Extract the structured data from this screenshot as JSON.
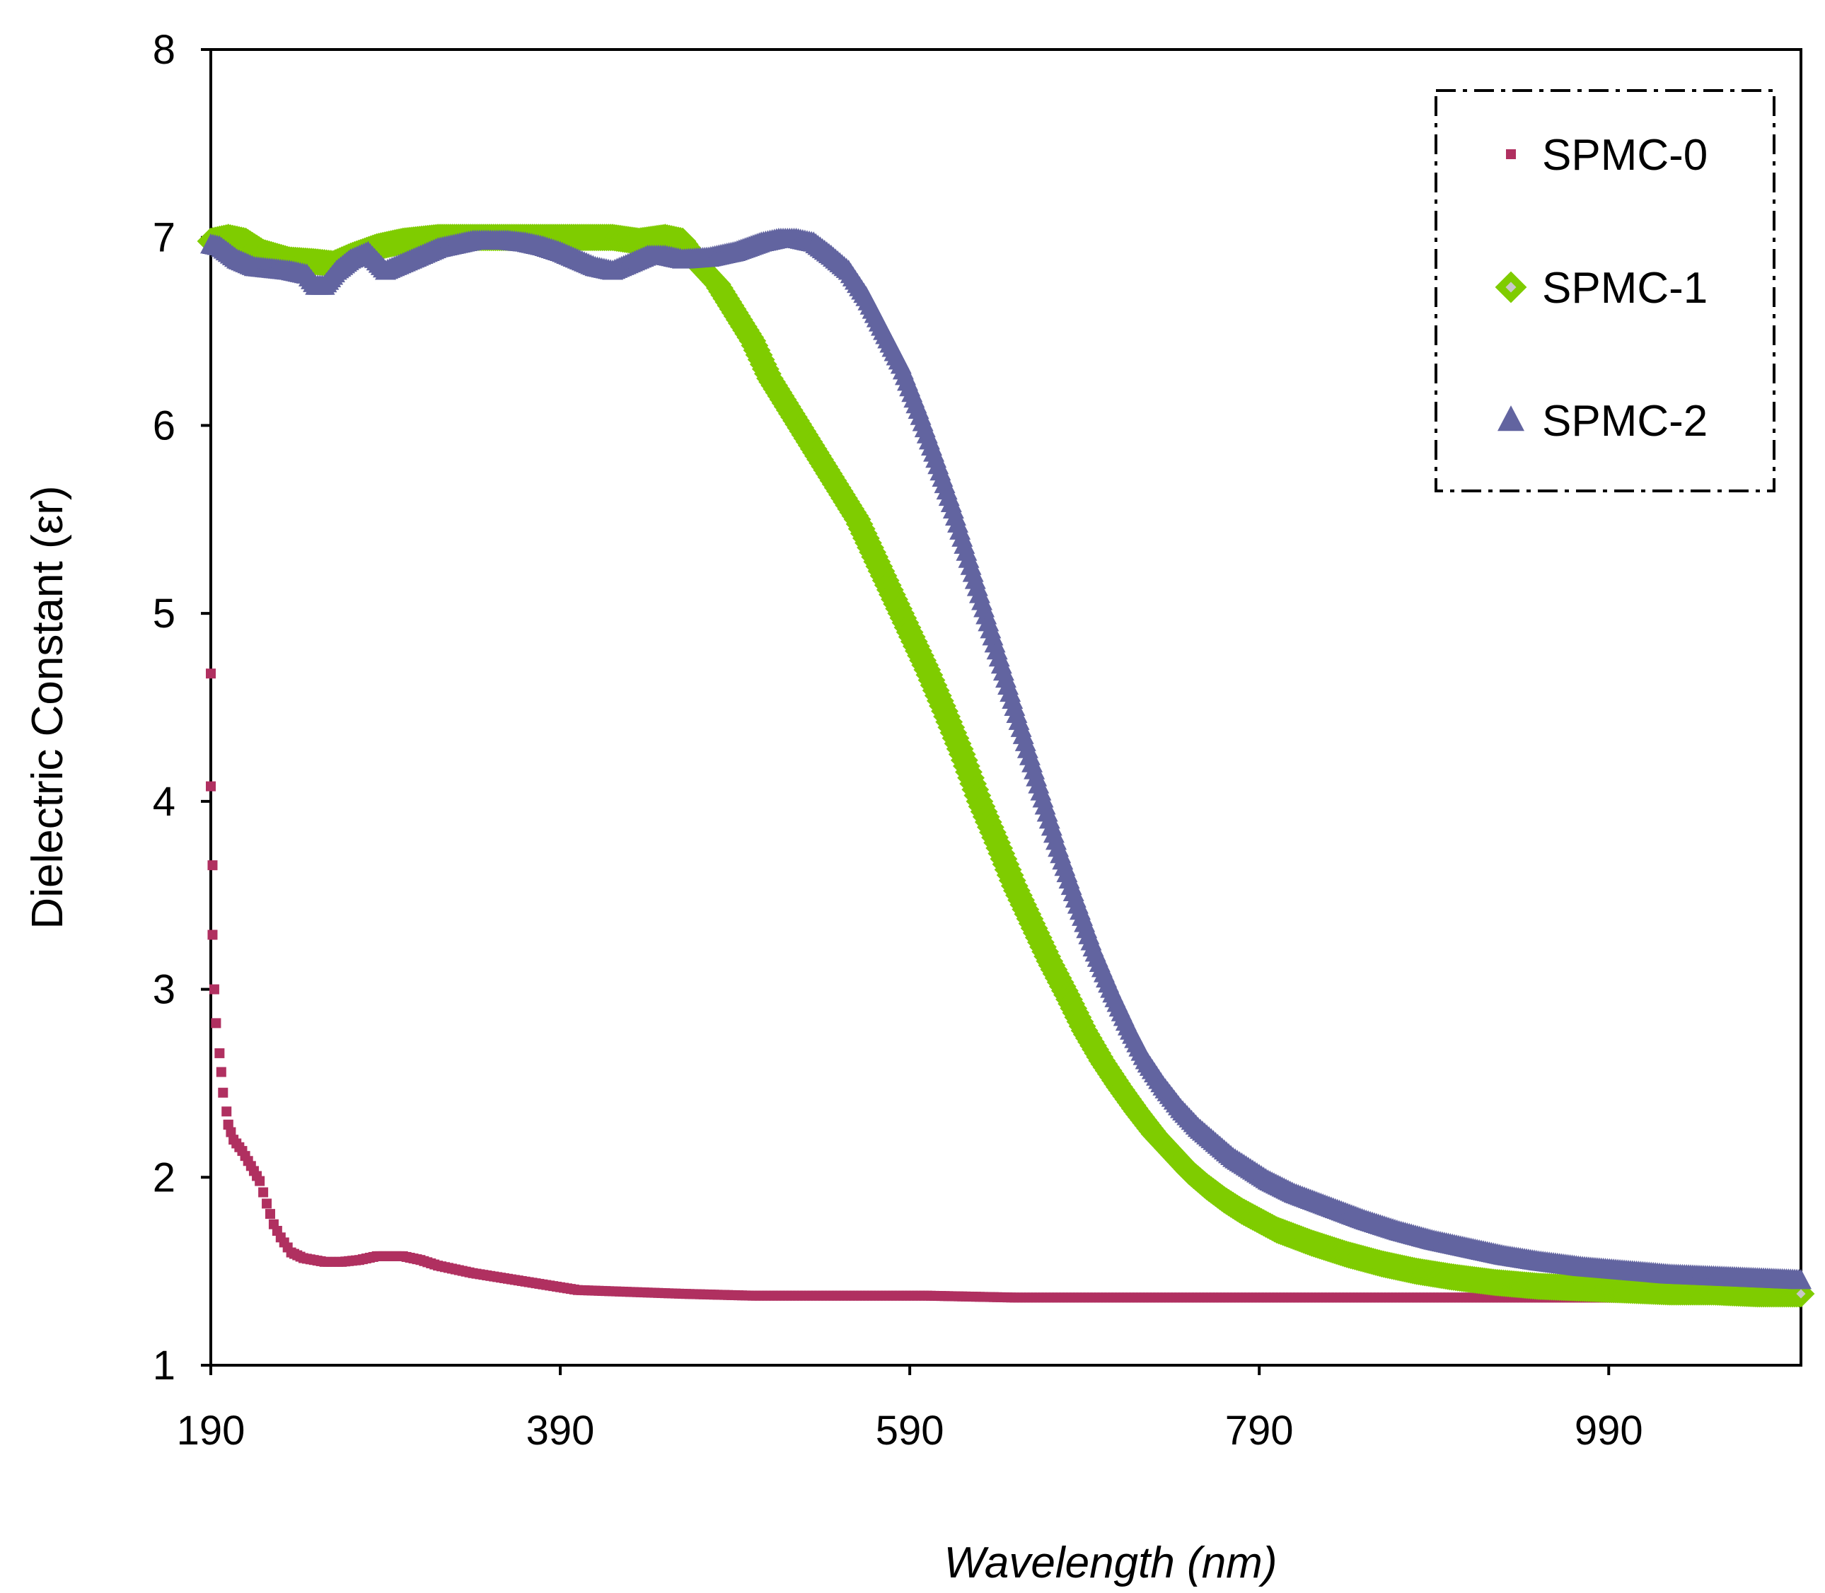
{
  "chart_data": {
    "type": "scatter",
    "title": "",
    "xlabel": "Wavelength (nm)",
    "ylabel": "Dielectric Constant (εr)",
    "xlim": [
      190,
      1100
    ],
    "ylim": [
      1,
      8
    ],
    "xticks": [
      190,
      390,
      590,
      790,
      990
    ],
    "yticks": [
      1,
      2,
      3,
      4,
      5,
      6,
      7,
      8
    ],
    "grid": false,
    "legend_position": "top-right",
    "colors": {
      "SPMC-0": "#b03060",
      "SPMC-1": "#7fcc00",
      "SPMC-2": "#6264a0"
    },
    "series": [
      {
        "name": "SPMC-0",
        "marker": "square",
        "points": [
          [
            190,
            4.68
          ],
          [
            190,
            4.08
          ],
          [
            191,
            3.66
          ],
          [
            191,
            3.29
          ],
          [
            192,
            3.0
          ],
          [
            193,
            2.82
          ],
          [
            195,
            2.66
          ],
          [
            196,
            2.56
          ],
          [
            197,
            2.45
          ],
          [
            199,
            2.35
          ],
          [
            200,
            2.28
          ],
          [
            203,
            2.2
          ],
          [
            208,
            2.14
          ],
          [
            213,
            2.06
          ],
          [
            218,
            1.98
          ],
          [
            222,
            1.86
          ],
          [
            226,
            1.75
          ],
          [
            230,
            1.68
          ],
          [
            236,
            1.6
          ],
          [
            243,
            1.57
          ],
          [
            255,
            1.55
          ],
          [
            265,
            1.55
          ],
          [
            275,
            1.56
          ],
          [
            285,
            1.58
          ],
          [
            300,
            1.58
          ],
          [
            310,
            1.56
          ],
          [
            320,
            1.53
          ],
          [
            340,
            1.49
          ],
          [
            360,
            1.46
          ],
          [
            380,
            1.43
          ],
          [
            400,
            1.4
          ],
          [
            430,
            1.39
          ],
          [
            460,
            1.38
          ],
          [
            500,
            1.37
          ],
          [
            550,
            1.37
          ],
          [
            600,
            1.37
          ],
          [
            650,
            1.36
          ],
          [
            700,
            1.36
          ],
          [
            750,
            1.36
          ],
          [
            800,
            1.36
          ],
          [
            850,
            1.36
          ],
          [
            900,
            1.36
          ],
          [
            950,
            1.36
          ],
          [
            1000,
            1.36
          ],
          [
            1050,
            1.36
          ],
          [
            1100,
            1.36
          ]
        ]
      },
      {
        "name": "SPMC-1",
        "marker": "diamond",
        "points": [
          [
            190,
            6.98
          ],
          [
            200,
            7.0
          ],
          [
            210,
            6.98
          ],
          [
            220,
            6.92
          ],
          [
            235,
            6.88
          ],
          [
            250,
            6.87
          ],
          [
            260,
            6.86
          ],
          [
            270,
            6.9
          ],
          [
            285,
            6.95
          ],
          [
            300,
            6.98
          ],
          [
            320,
            7.0
          ],
          [
            340,
            7.0
          ],
          [
            360,
            7.0
          ],
          [
            380,
            7.0
          ],
          [
            400,
            7.0
          ],
          [
            420,
            7.0
          ],
          [
            435,
            6.98
          ],
          [
            450,
            7.0
          ],
          [
            460,
            6.98
          ],
          [
            470,
            6.85
          ],
          [
            480,
            6.75
          ],
          [
            490,
            6.6
          ],
          [
            500,
            6.45
          ],
          [
            510,
            6.25
          ],
          [
            520,
            6.1
          ],
          [
            530,
            5.95
          ],
          [
            540,
            5.8
          ],
          [
            550,
            5.65
          ],
          [
            560,
            5.5
          ],
          [
            570,
            5.3
          ],
          [
            580,
            5.1
          ],
          [
            590,
            4.9
          ],
          [
            600,
            4.7
          ],
          [
            610,
            4.48
          ],
          [
            620,
            4.25
          ],
          [
            630,
            4.0
          ],
          [
            640,
            3.78
          ],
          [
            650,
            3.55
          ],
          [
            660,
            3.35
          ],
          [
            670,
            3.15
          ],
          [
            680,
            2.97
          ],
          [
            690,
            2.78
          ],
          [
            700,
            2.62
          ],
          [
            710,
            2.48
          ],
          [
            720,
            2.35
          ],
          [
            730,
            2.23
          ],
          [
            740,
            2.13
          ],
          [
            750,
            2.03
          ],
          [
            760,
            1.95
          ],
          [
            770,
            1.88
          ],
          [
            780,
            1.82
          ],
          [
            790,
            1.77
          ],
          [
            800,
            1.72
          ],
          [
            820,
            1.65
          ],
          [
            840,
            1.59
          ],
          [
            860,
            1.54
          ],
          [
            880,
            1.5
          ],
          [
            900,
            1.47
          ],
          [
            925,
            1.44
          ],
          [
            950,
            1.42
          ],
          [
            975,
            1.41
          ],
          [
            1000,
            1.4
          ],
          [
            1025,
            1.39
          ],
          [
            1050,
            1.39
          ],
          [
            1075,
            1.38
          ],
          [
            1100,
            1.38
          ]
        ]
      },
      {
        "name": "SPMC-2",
        "marker": "triangle",
        "points": [
          [
            190,
            6.96
          ],
          [
            195,
            6.95
          ],
          [
            205,
            6.88
          ],
          [
            215,
            6.84
          ],
          [
            225,
            6.83
          ],
          [
            235,
            6.82
          ],
          [
            245,
            6.8
          ],
          [
            250,
            6.74
          ],
          [
            255,
            6.74
          ],
          [
            262,
            6.82
          ],
          [
            270,
            6.88
          ],
          [
            280,
            6.92
          ],
          [
            290,
            6.82
          ],
          [
            300,
            6.86
          ],
          [
            310,
            6.9
          ],
          [
            320,
            6.94
          ],
          [
            330,
            6.96
          ],
          [
            340,
            6.98
          ],
          [
            350,
            6.98
          ],
          [
            360,
            6.98
          ],
          [
            370,
            6.97
          ],
          [
            380,
            6.95
          ],
          [
            390,
            6.92
          ],
          [
            400,
            6.88
          ],
          [
            410,
            6.84
          ],
          [
            420,
            6.82
          ],
          [
            430,
            6.86
          ],
          [
            440,
            6.9
          ],
          [
            450,
            6.9
          ],
          [
            460,
            6.88
          ],
          [
            475,
            6.89
          ],
          [
            490,
            6.92
          ],
          [
            505,
            6.97
          ],
          [
            515,
            6.99
          ],
          [
            525,
            6.99
          ],
          [
            535,
            6.97
          ],
          [
            545,
            6.9
          ],
          [
            555,
            6.82
          ],
          [
            565,
            6.68
          ],
          [
            575,
            6.5
          ],
          [
            585,
            6.32
          ],
          [
            595,
            6.08
          ],
          [
            605,
            5.82
          ],
          [
            615,
            5.55
          ],
          [
            625,
            5.25
          ],
          [
            635,
            4.95
          ],
          [
            645,
            4.65
          ],
          [
            655,
            4.35
          ],
          [
            665,
            4.05
          ],
          [
            675,
            3.75
          ],
          [
            685,
            3.48
          ],
          [
            695,
            3.22
          ],
          [
            705,
            3.0
          ],
          [
            715,
            2.8
          ],
          [
            725,
            2.62
          ],
          [
            735,
            2.48
          ],
          [
            745,
            2.36
          ],
          [
            755,
            2.26
          ],
          [
            765,
            2.18
          ],
          [
            775,
            2.1
          ],
          [
            785,
            2.04
          ],
          [
            795,
            1.98
          ],
          [
            810,
            1.91
          ],
          [
            830,
            1.84
          ],
          [
            850,
            1.77
          ],
          [
            870,
            1.71
          ],
          [
            890,
            1.66
          ],
          [
            910,
            1.62
          ],
          [
            930,
            1.58
          ],
          [
            950,
            1.55
          ],
          [
            975,
            1.52
          ],
          [
            1000,
            1.5
          ],
          [
            1025,
            1.48
          ],
          [
            1050,
            1.47
          ],
          [
            1075,
            1.46
          ],
          [
            1100,
            1.45
          ]
        ]
      }
    ]
  }
}
